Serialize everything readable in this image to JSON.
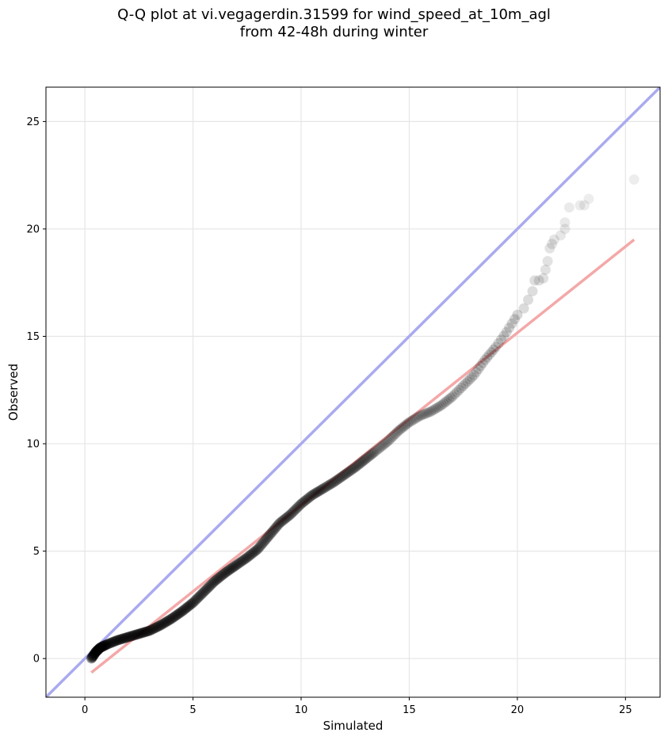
{
  "chart_data": {
    "type": "scatter",
    "title_lines": [
      "Q-Q plot at vi.vegagerdin.31599 for wind_speed_at_10m_agl",
      "from 42-48h during winter"
    ],
    "xlabel": "Simulated",
    "ylabel": "Observed",
    "xlim": [
      -1.8,
      26.6
    ],
    "ylim": [
      -1.8,
      26.6
    ],
    "xticks": [
      0,
      5,
      10,
      15,
      20,
      25
    ],
    "yticks": [
      0,
      5,
      10,
      15,
      20,
      25
    ],
    "grid": true,
    "identity_line": {
      "color": "#aaaaf0",
      "from": [
        -1.8,
        -1.8
      ],
      "to": [
        26.6,
        26.6
      ]
    },
    "fit_line": {
      "color": "#f4a8a8",
      "from": [
        0.3,
        -0.65
      ],
      "to": [
        25.4,
        19.5
      ]
    },
    "quantile_anchors": [
      [
        0.3,
        0.0
      ],
      [
        0.5,
        0.3
      ],
      [
        0.7,
        0.5
      ],
      [
        1.0,
        0.65
      ],
      [
        1.5,
        0.85
      ],
      [
        2.0,
        1.0
      ],
      [
        2.5,
        1.15
      ],
      [
        3.0,
        1.3
      ],
      [
        3.5,
        1.55
      ],
      [
        4.0,
        1.85
      ],
      [
        4.5,
        2.2
      ],
      [
        5.0,
        2.6
      ],
      [
        5.5,
        3.1
      ],
      [
        6.0,
        3.6
      ],
      [
        6.5,
        4.0
      ],
      [
        7.0,
        4.35
      ],
      [
        7.5,
        4.7
      ],
      [
        8.0,
        5.1
      ],
      [
        8.5,
        5.7
      ],
      [
        9.0,
        6.3
      ],
      [
        9.5,
        6.7
      ],
      [
        10.0,
        7.2
      ],
      [
        10.5,
        7.6
      ],
      [
        11.0,
        7.9
      ],
      [
        11.5,
        8.2
      ],
      [
        12.0,
        8.55
      ],
      [
        12.5,
        8.9
      ],
      [
        13.0,
        9.3
      ],
      [
        13.5,
        9.7
      ],
      [
        14.0,
        10.1
      ],
      [
        14.5,
        10.6
      ],
      [
        15.0,
        11.0
      ],
      [
        15.5,
        11.3
      ],
      [
        16.0,
        11.5
      ],
      [
        16.5,
        11.8
      ],
      [
        17.0,
        12.2
      ],
      [
        17.5,
        12.7
      ],
      [
        18.0,
        13.2
      ],
      [
        18.5,
        13.9
      ],
      [
        19.0,
        14.5
      ],
      [
        19.5,
        15.2
      ],
      [
        20.0,
        16.0
      ]
    ],
    "tail_points": [
      [
        20.3,
        16.3
      ],
      [
        20.5,
        16.7
      ],
      [
        20.7,
        17.1
      ],
      [
        20.8,
        17.6
      ],
      [
        21.0,
        17.6
      ],
      [
        21.2,
        17.7
      ],
      [
        21.3,
        18.1
      ],
      [
        21.4,
        18.5
      ],
      [
        21.5,
        19.1
      ],
      [
        21.6,
        19.3
      ],
      [
        21.7,
        19.5
      ],
      [
        22.0,
        19.7
      ],
      [
        22.2,
        20.0
      ],
      [
        22.2,
        20.3
      ],
      [
        22.4,
        21.0
      ],
      [
        22.9,
        21.1
      ],
      [
        23.1,
        21.1
      ],
      [
        23.3,
        21.4
      ],
      [
        25.4,
        22.3
      ]
    ],
    "series": [
      {
        "type": "scatter",
        "color": "#000000"
      }
    ]
  }
}
